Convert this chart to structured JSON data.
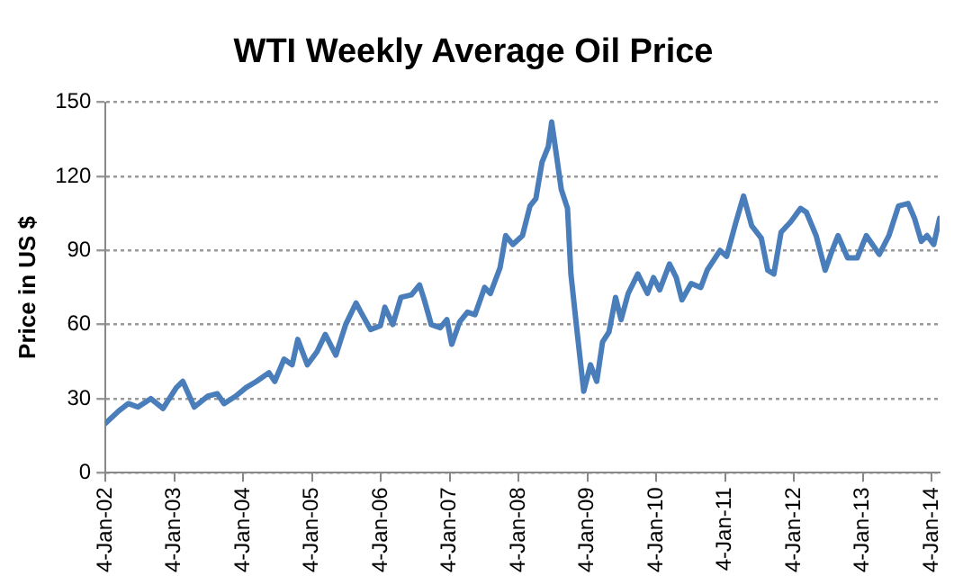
{
  "chart_data": {
    "type": "line",
    "title": "WTI Weekly Average Oil Price",
    "ylabel": "Price in US $",
    "x": [
      "2002-01-04",
      "2002-03-15",
      "2002-05-05",
      "2002-06-25",
      "2002-09-01",
      "2002-11-05",
      "2003-01-15",
      "2003-02-18",
      "2003-04-20",
      "2003-07-01",
      "2003-08-20",
      "2003-09-25",
      "2003-11-25",
      "2004-01-20",
      "2004-03-15",
      "2004-05-20",
      "2004-06-20",
      "2004-08-08",
      "2004-09-20",
      "2004-10-20",
      "2004-12-10",
      "2005-01-30",
      "2005-03-15",
      "2005-05-10",
      "2005-07-01",
      "2005-08-25",
      "2005-09-20",
      "2005-11-10",
      "2006-01-01",
      "2006-01-25",
      "2006-03-08",
      "2006-04-20",
      "2006-06-15",
      "2006-07-28",
      "2006-08-22",
      "2006-09-28",
      "2006-11-15",
      "2006-12-20",
      "2007-01-15",
      "2007-02-25",
      "2007-04-08",
      "2007-05-18",
      "2007-07-08",
      "2007-08-08",
      "2007-09-28",
      "2007-10-28",
      "2007-12-05",
      "2008-01-25",
      "2008-03-05",
      "2008-04-05",
      "2008-05-08",
      "2008-06-10",
      "2008-06-28",
      "2008-07-15",
      "2008-08-18",
      "2008-09-20",
      "2008-10-08",
      "2008-11-10",
      "2008-12-15",
      "2009-01-20",
      "2009-02-22",
      "2009-03-25",
      "2009-04-28",
      "2009-06-02",
      "2009-07-01",
      "2009-08-08",
      "2009-09-28",
      "2009-11-18",
      "2009-12-20",
      "2010-01-22",
      "2010-03-15",
      "2010-04-20",
      "2010-05-20",
      "2010-07-08",
      "2010-08-28",
      "2010-10-01",
      "2010-12-08",
      "2011-01-12",
      "2011-03-03",
      "2011-04-12",
      "2011-05-25",
      "2011-07-15",
      "2011-08-18",
      "2011-09-20",
      "2011-10-28",
      "2011-12-18",
      "2012-02-08",
      "2012-03-10",
      "2012-05-01",
      "2012-06-18",
      "2012-07-25",
      "2012-08-25",
      "2012-10-15",
      "2012-12-05",
      "2013-01-22",
      "2013-04-01",
      "2013-05-22",
      "2013-07-12",
      "2013-09-01",
      "2013-10-05",
      "2013-11-10",
      "2013-12-10",
      "2014-01-15",
      "2014-02-15"
    ],
    "series": [
      {
        "color": "#4a7ebb",
        "values": [
          20,
          25,
          28,
          26.6,
          30,
          26,
          34.5,
          37,
          26.6,
          31,
          32,
          28,
          31,
          34.5,
          37,
          40.5,
          37,
          46,
          43.7,
          54,
          43.7,
          49,
          56,
          47.6,
          60,
          68.7,
          65,
          58,
          59.5,
          67,
          60,
          71,
          72,
          76,
          70,
          60,
          58.7,
          62,
          52,
          61,
          65,
          64,
          75,
          72.6,
          83,
          96,
          92.4,
          96,
          108,
          111,
          125.8,
          132,
          142,
          133,
          114.7,
          107,
          80.5,
          57,
          33,
          43.7,
          37,
          53,
          57,
          71,
          62,
          72.6,
          80.5,
          72.6,
          79,
          74,
          84.5,
          79,
          70,
          76.6,
          75,
          82,
          90,
          87.6,
          101.6,
          112,
          100,
          95,
          82,
          80.5,
          97.4,
          101.6,
          107,
          105.5,
          96,
          82,
          90,
          96,
          87,
          87,
          96,
          88.4,
          96,
          108,
          109,
          103,
          93.7,
          96,
          92.4,
          103
        ]
      }
    ],
    "xlim": [
      "2002-01-04",
      "2014-02-15"
    ],
    "xticks": [
      {
        "value": "2002-01-04",
        "label": "4-Jan-02"
      },
      {
        "value": "2003-01-04",
        "label": "4-Jan-03"
      },
      {
        "value": "2004-01-04",
        "label": "4-Jan-04"
      },
      {
        "value": "2005-01-04",
        "label": "4-Jan-05"
      },
      {
        "value": "2006-01-04",
        "label": "4-Jan-06"
      },
      {
        "value": "2007-01-04",
        "label": "4-Jan-07"
      },
      {
        "value": "2008-01-04",
        "label": "4-Jan-08"
      },
      {
        "value": "2009-01-04",
        "label": "4-Jan-09"
      },
      {
        "value": "2010-01-04",
        "label": "4-Jan-10"
      },
      {
        "value": "2011-01-04",
        "label": "4-Jan-11"
      },
      {
        "value": "2012-01-04",
        "label": "4-Jan-12"
      },
      {
        "value": "2013-01-04",
        "label": "4-Jan-13"
      },
      {
        "value": "2014-01-04",
        "label": "4-Jan-14"
      }
    ],
    "ylim": [
      0,
      150
    ],
    "yticks": [
      0,
      30,
      60,
      90,
      120,
      150
    ],
    "grid": "y",
    "marker": "none",
    "line_style": "solid",
    "legend": false
  }
}
